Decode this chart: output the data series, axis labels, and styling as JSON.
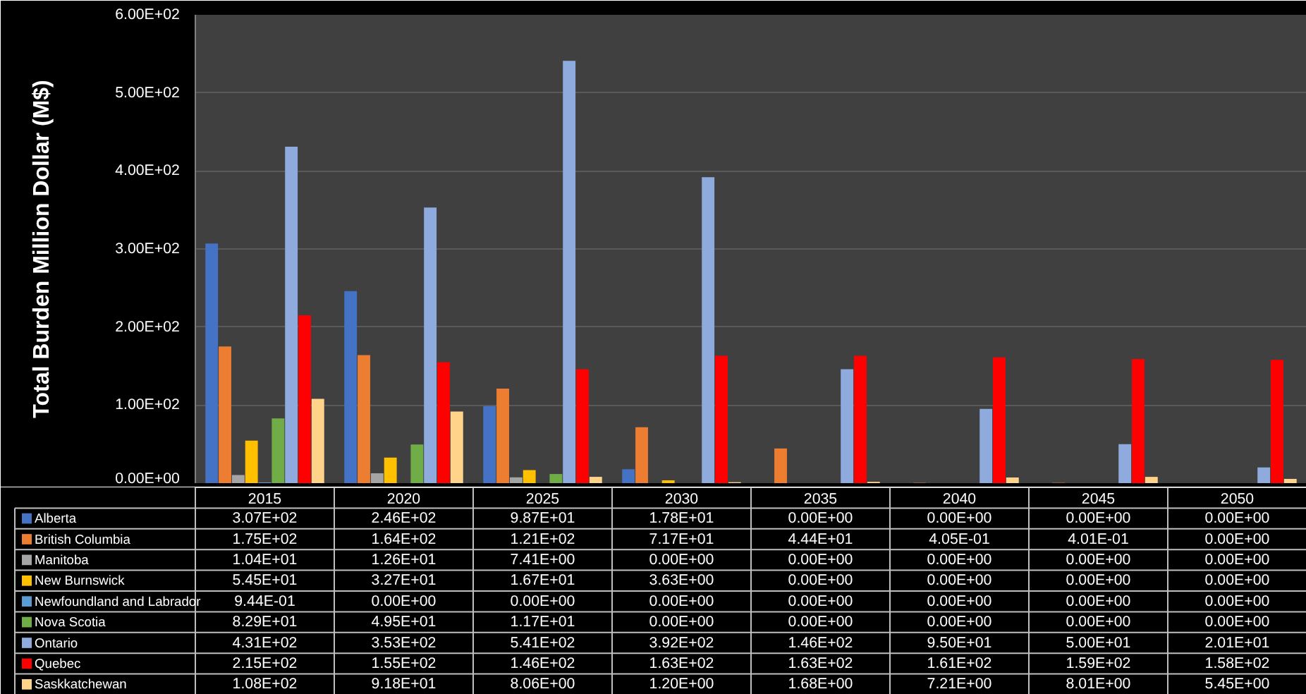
{
  "chart_data": {
    "type": "bar",
    "ylabel": "Total Burden Million Dollar (M$)",
    "categories": [
      "2015",
      "2020",
      "2025",
      "2030",
      "2035",
      "2040",
      "2045",
      "2050"
    ],
    "ylim": [
      0,
      600
    ],
    "yticks": [
      {
        "value": 0,
        "label": "0.00E+00"
      },
      {
        "value": 100,
        "label": "1.00E+02"
      },
      {
        "value": 200,
        "label": "2.00E+02"
      },
      {
        "value": 300,
        "label": "3.00E+02"
      },
      {
        "value": 400,
        "label": "4.00E+02"
      },
      {
        "value": 500,
        "label": "5.00E+02"
      },
      {
        "value": 600,
        "label": "6.00E+02"
      }
    ],
    "grid": "y",
    "legend": "bottom",
    "series": [
      {
        "name": "Alberta",
        "color": "#4472c4",
        "values": [
          307,
          246,
          98.7,
          17.8,
          0,
          0,
          0,
          0
        ],
        "value_labels": [
          "3.07E+02",
          "2.46E+02",
          "9.87E+01",
          "1.78E+01",
          "0.00E+00",
          "0.00E+00",
          "0.00E+00",
          "0.00E+00"
        ]
      },
      {
        "name": "British Columbia",
        "color": "#ed7d31",
        "values": [
          175,
          164,
          121,
          71.7,
          44.4,
          0.405,
          0.401,
          0
        ],
        "value_labels": [
          "1.75E+02",
          "1.64E+02",
          "1.21E+02",
          "7.17E+01",
          "4.44E+01",
          "4.05E-01",
          "4.01E-01",
          "0.00E+00"
        ]
      },
      {
        "name": "Manitoba",
        "color": "#a5a5a5",
        "values": [
          10.4,
          12.6,
          7.41,
          0,
          0,
          0,
          0,
          0
        ],
        "value_labels": [
          "1.04E+01",
          "1.26E+01",
          "7.41E+00",
          "0.00E+00",
          "0.00E+00",
          "0.00E+00",
          "0.00E+00",
          "0.00E+00"
        ]
      },
      {
        "name": "New Burnswick",
        "color": "#ffc000",
        "values": [
          54.5,
          32.7,
          16.7,
          3.63,
          0,
          0,
          0,
          0
        ],
        "value_labels": [
          "5.45E+01",
          "3.27E+01",
          "1.67E+01",
          "3.63E+00",
          "0.00E+00",
          "0.00E+00",
          "0.00E+00",
          "0.00E+00"
        ]
      },
      {
        "name": "Newfoundland and Labrador",
        "color": "#5b9bd5",
        "values": [
          0.944,
          0,
          0,
          0,
          0,
          0,
          0,
          0
        ],
        "value_labels": [
          "9.44E-01",
          "0.00E+00",
          "0.00E+00",
          "0.00E+00",
          "0.00E+00",
          "0.00E+00",
          "0.00E+00",
          "0.00E+00"
        ]
      },
      {
        "name": "Nova Scotia",
        "color": "#70ad47",
        "values": [
          82.9,
          49.5,
          11.7,
          0,
          0,
          0,
          0,
          0
        ],
        "value_labels": [
          "8.29E+01",
          "4.95E+01",
          "1.17E+01",
          "0.00E+00",
          "0.00E+00",
          "0.00E+00",
          "0.00E+00",
          "0.00E+00"
        ]
      },
      {
        "name": "Ontario",
        "color": "#8faadc",
        "values": [
          431,
          353,
          541,
          392,
          146,
          95.0,
          50.0,
          20.1
        ],
        "value_labels": [
          "4.31E+02",
          "3.53E+02",
          "5.41E+02",
          "3.92E+02",
          "1.46E+02",
          "9.50E+01",
          "5.00E+01",
          "2.01E+01"
        ]
      },
      {
        "name": "Quebec",
        "color": "#ff0000",
        "values": [
          215,
          155,
          146,
          163,
          163,
          161,
          159,
          158
        ],
        "value_labels": [
          "2.15E+02",
          "1.55E+02",
          "1.46E+02",
          "1.63E+02",
          "1.63E+02",
          "1.61E+02",
          "1.59E+02",
          "1.58E+02"
        ]
      },
      {
        "name": "Saskkatchewan",
        "color": "#ffd38a",
        "values": [
          108,
          91.8,
          8.06,
          1.2,
          1.68,
          7.21,
          8.01,
          5.45
        ],
        "value_labels": [
          "1.08E+02",
          "9.18E+01",
          "8.06E+00",
          "1.20E+00",
          "1.68E+00",
          "7.21E+00",
          "8.01E+00",
          "5.45E+00"
        ]
      }
    ]
  }
}
